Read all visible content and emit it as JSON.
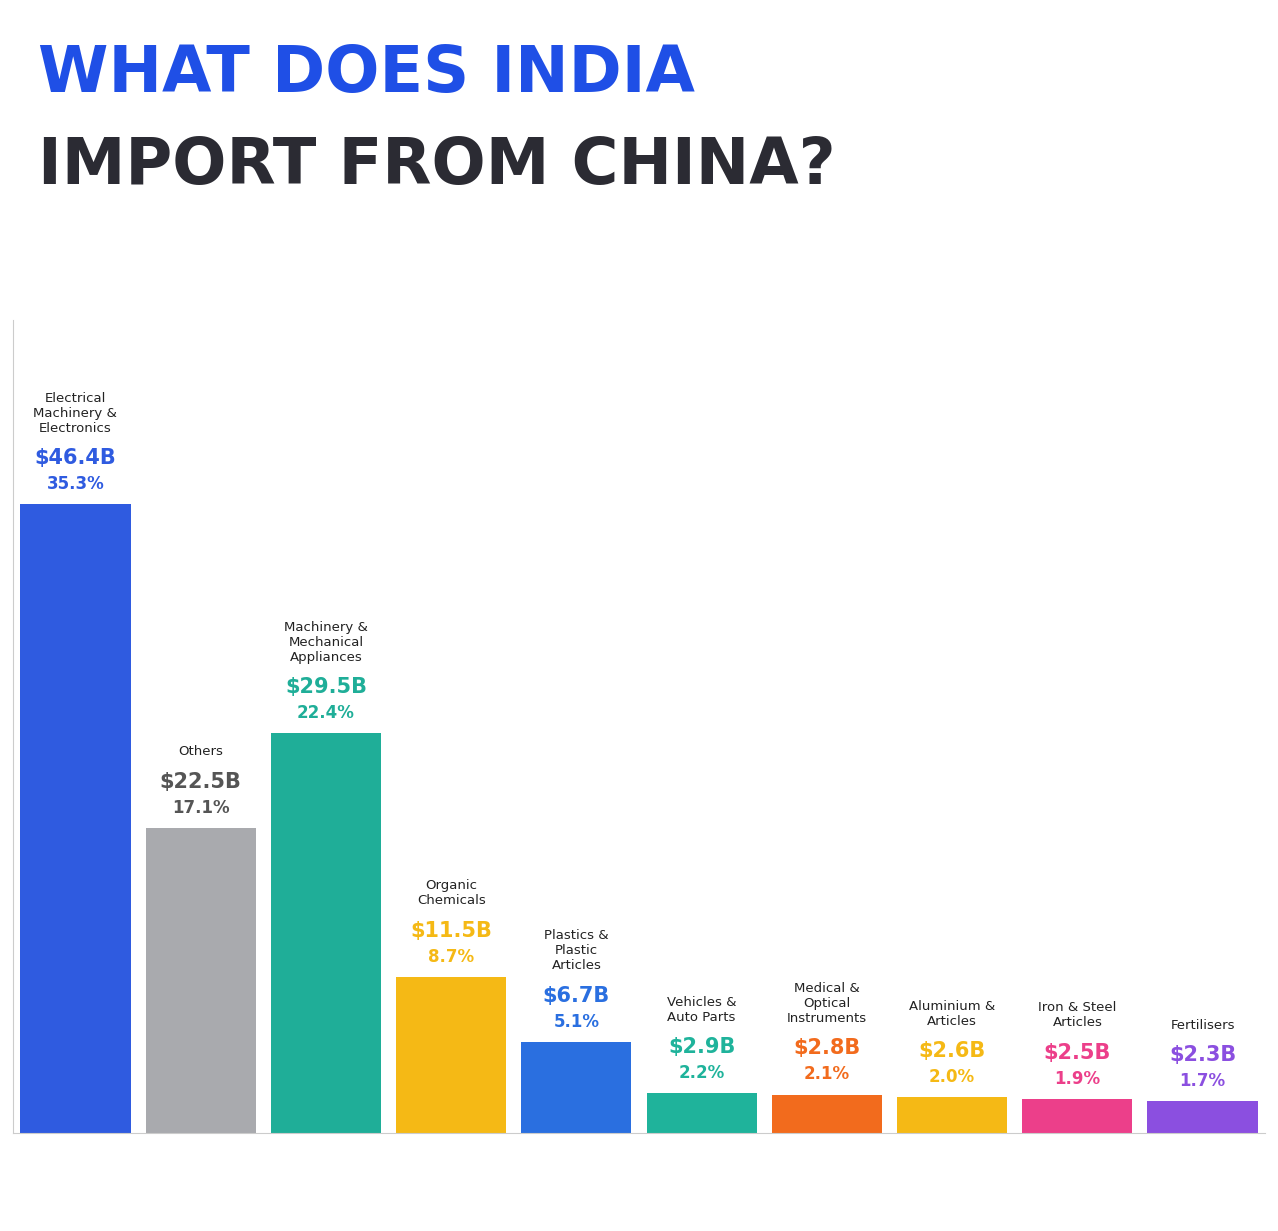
{
  "chart_data": {
    "type": "bar",
    "title": "WHAT DOES INDIA\nIMPORT FROM CHINA?",
    "categories": [
      "Electrical Machinery & Electronics",
      "Others",
      "Machinery & Mechanical Appliances",
      "Organic Chemicals",
      "Plastics & Plastic Articles",
      "Vehicles & Auto Parts",
      "Medical & Optical Instruments",
      "Aluminium & Articles",
      "Iron & Steel Articles",
      "Fertilisers"
    ],
    "values": [
      46.4,
      22.5,
      29.5,
      11.5,
      6.7,
      2.9,
      2.8,
      2.6,
      2.5,
      2.3
    ],
    "value_labels": [
      "$46.4B",
      "$22.5B",
      "$29.5B",
      "$11.5B",
      "$6.7B",
      "$2.9B",
      "$2.8B",
      "$2.6B",
      "$2.5B",
      "$2.3B"
    ],
    "share_labels": [
      "35.3%",
      "17.1%",
      "22.4%",
      "8.7%",
      "5.1%",
      "2.2%",
      "2.1%",
      "2.0%",
      "1.9%",
      "1.7%"
    ],
    "colors": [
      "#2f5be0",
      "#a9aaae",
      "#1fae98",
      "#f5b915",
      "#2a6fe0",
      "#1fb39b",
      "#f26b1d",
      "#f5b915",
      "#ec3f8a",
      "#8b4fe0"
    ],
    "ylim": [
      0,
      60
    ],
    "data_labels": true,
    "tick_labels": false,
    "grid": false
  }
}
